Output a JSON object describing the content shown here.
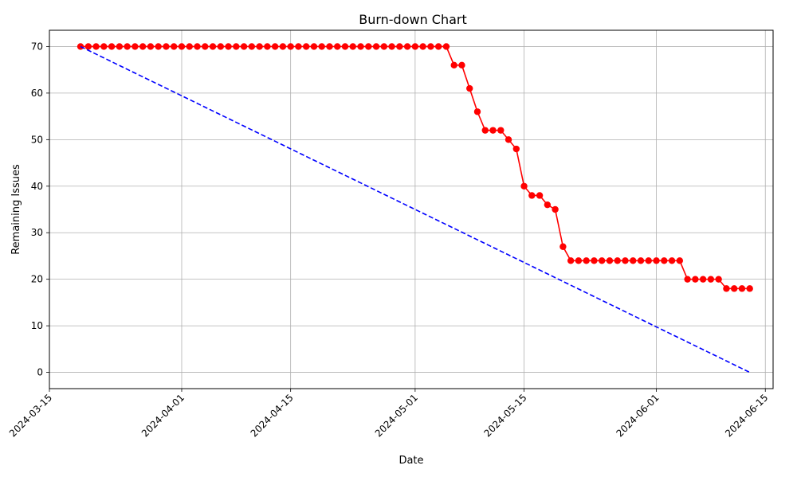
{
  "chart_data": {
    "type": "line",
    "title": "Burn-down Chart",
    "xlabel": "Date",
    "ylabel": "Remaining Issues",
    "x_axis_type": "date",
    "xlim": [
      "2024-03-15",
      "2024-06-16"
    ],
    "ylim": [
      -3.5,
      73.5
    ],
    "x_ticks": [
      "2024-03-15",
      "2024-04-01",
      "2024-04-15",
      "2024-05-01",
      "2024-05-15",
      "2024-06-01",
      "2024-06-15"
    ],
    "y_ticks": [
      0,
      10,
      20,
      30,
      40,
      50,
      60,
      70
    ],
    "grid": true,
    "x_tick_rotation": 45,
    "series": [
      {
        "style": "solid line with circle markers",
        "color": "#ff0000",
        "points": [
          [
            "2024-03-19",
            70
          ],
          [
            "2024-03-20",
            70
          ],
          [
            "2024-03-21",
            70
          ],
          [
            "2024-03-22",
            70
          ],
          [
            "2024-03-23",
            70
          ],
          [
            "2024-03-24",
            70
          ],
          [
            "2024-03-25",
            70
          ],
          [
            "2024-03-26",
            70
          ],
          [
            "2024-03-27",
            70
          ],
          [
            "2024-03-28",
            70
          ],
          [
            "2024-03-29",
            70
          ],
          [
            "2024-03-30",
            70
          ],
          [
            "2024-03-31",
            70
          ],
          [
            "2024-04-01",
            70
          ],
          [
            "2024-04-02",
            70
          ],
          [
            "2024-04-03",
            70
          ],
          [
            "2024-04-04",
            70
          ],
          [
            "2024-04-05",
            70
          ],
          [
            "2024-04-06",
            70
          ],
          [
            "2024-04-07",
            70
          ],
          [
            "2024-04-08",
            70
          ],
          [
            "2024-04-09",
            70
          ],
          [
            "2024-04-10",
            70
          ],
          [
            "2024-04-11",
            70
          ],
          [
            "2024-04-12",
            70
          ],
          [
            "2024-04-13",
            70
          ],
          [
            "2024-04-14",
            70
          ],
          [
            "2024-04-15",
            70
          ],
          [
            "2024-04-16",
            70
          ],
          [
            "2024-04-17",
            70
          ],
          [
            "2024-04-18",
            70
          ],
          [
            "2024-04-19",
            70
          ],
          [
            "2024-04-20",
            70
          ],
          [
            "2024-04-21",
            70
          ],
          [
            "2024-04-22",
            70
          ],
          [
            "2024-04-23",
            70
          ],
          [
            "2024-04-24",
            70
          ],
          [
            "2024-04-25",
            70
          ],
          [
            "2024-04-26",
            70
          ],
          [
            "2024-04-27",
            70
          ],
          [
            "2024-04-28",
            70
          ],
          [
            "2024-04-29",
            70
          ],
          [
            "2024-04-30",
            70
          ],
          [
            "2024-05-01",
            70
          ],
          [
            "2024-05-02",
            70
          ],
          [
            "2024-05-03",
            70
          ],
          [
            "2024-05-04",
            70
          ],
          [
            "2024-05-05",
            70
          ],
          [
            "2024-05-06",
            66
          ],
          [
            "2024-05-07",
            66
          ],
          [
            "2024-05-08",
            61
          ],
          [
            "2024-05-09",
            56
          ],
          [
            "2024-05-10",
            52
          ],
          [
            "2024-05-11",
            52
          ],
          [
            "2024-05-12",
            52
          ],
          [
            "2024-05-13",
            50
          ],
          [
            "2024-05-14",
            48
          ],
          [
            "2024-05-15",
            40
          ],
          [
            "2024-05-16",
            38
          ],
          [
            "2024-05-17",
            38
          ],
          [
            "2024-05-18",
            36
          ],
          [
            "2024-05-19",
            35
          ],
          [
            "2024-05-20",
            27
          ],
          [
            "2024-05-21",
            24
          ],
          [
            "2024-05-22",
            24
          ],
          [
            "2024-05-23",
            24
          ],
          [
            "2024-05-24",
            24
          ],
          [
            "2024-05-25",
            24
          ],
          [
            "2024-05-26",
            24
          ],
          [
            "2024-05-27",
            24
          ],
          [
            "2024-05-28",
            24
          ],
          [
            "2024-05-29",
            24
          ],
          [
            "2024-05-30",
            24
          ],
          [
            "2024-05-31",
            24
          ],
          [
            "2024-06-01",
            24
          ],
          [
            "2024-06-02",
            24
          ],
          [
            "2024-06-03",
            24
          ],
          [
            "2024-06-04",
            24
          ],
          [
            "2024-06-05",
            20
          ],
          [
            "2024-06-06",
            20
          ],
          [
            "2024-06-07",
            20
          ],
          [
            "2024-06-08",
            20
          ],
          [
            "2024-06-09",
            20
          ],
          [
            "2024-06-10",
            18
          ],
          [
            "2024-06-11",
            18
          ],
          [
            "2024-06-12",
            18
          ],
          [
            "2024-06-13",
            18
          ]
        ]
      },
      {
        "style": "dashed line",
        "color": "#0000ff",
        "points": [
          [
            "2024-03-19",
            70
          ],
          [
            "2024-06-13",
            0
          ]
        ]
      }
    ]
  }
}
